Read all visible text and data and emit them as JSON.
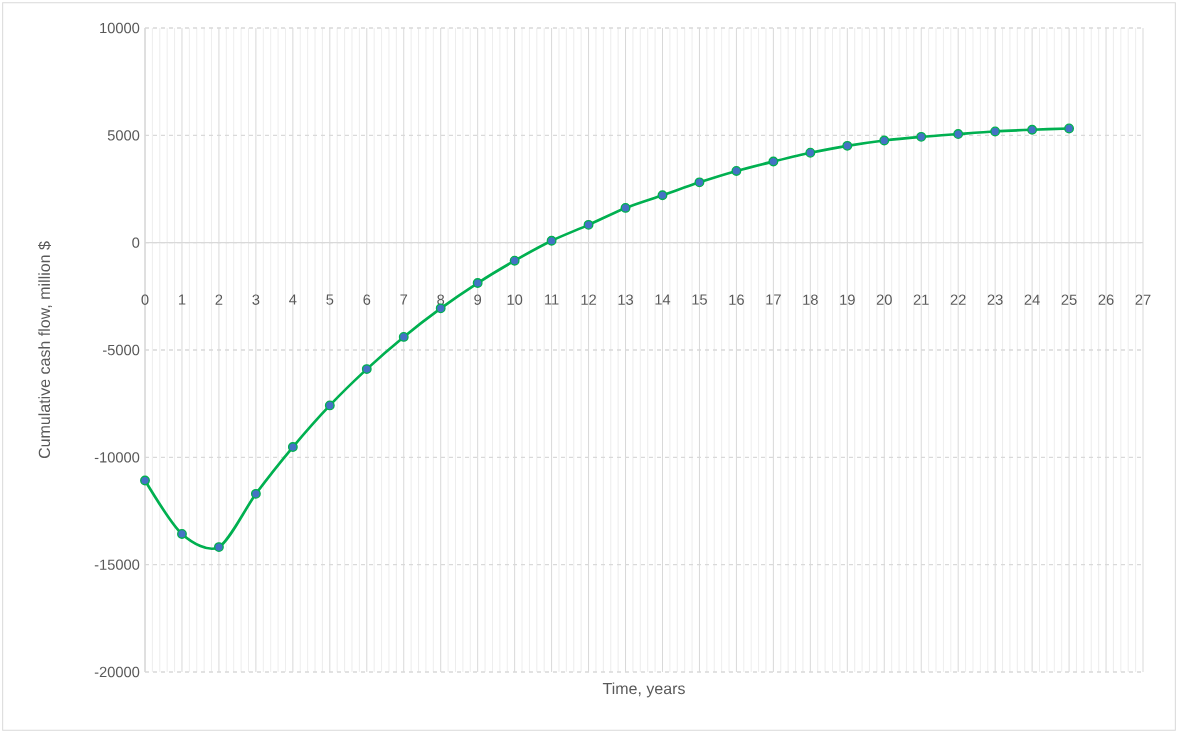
{
  "chart_data": {
    "type": "line",
    "xlabel": "Time,  years",
    "ylabel": "Cumulative cash flow, million $",
    "x": [
      0,
      1,
      2,
      3,
      4,
      5,
      6,
      7,
      8,
      9,
      10,
      11,
      12,
      13,
      14,
      15,
      16,
      17,
      18,
      19,
      20,
      21,
      22,
      23,
      24,
      25
    ],
    "series": [
      {
        "color": "#00b050",
        "values": [
          -11080,
          -13570,
          -14180,
          -11700,
          -9520,
          -7580,
          -5890,
          -4390,
          -3060,
          -1880,
          -840,
          90,
          830,
          1620,
          2210,
          2810,
          3340,
          3780,
          4190,
          4510,
          4760,
          4930,
          5060,
          5180,
          5260,
          5320
        ]
      }
    ],
    "xlim": [
      0,
      27
    ],
    "xticks": [
      0,
      1,
      2,
      3,
      4,
      5,
      6,
      7,
      8,
      9,
      10,
      11,
      12,
      13,
      14,
      15,
      16,
      17,
      18,
      19,
      20,
      21,
      22,
      23,
      24,
      25,
      26,
      27
    ],
    "ylim": [
      -20000,
      10000
    ],
    "yticks": [
      -20000,
      -15000,
      -10000,
      -5000,
      0,
      5000,
      10000
    ],
    "grid": true,
    "marker": "circle",
    "line_style": "solid"
  }
}
